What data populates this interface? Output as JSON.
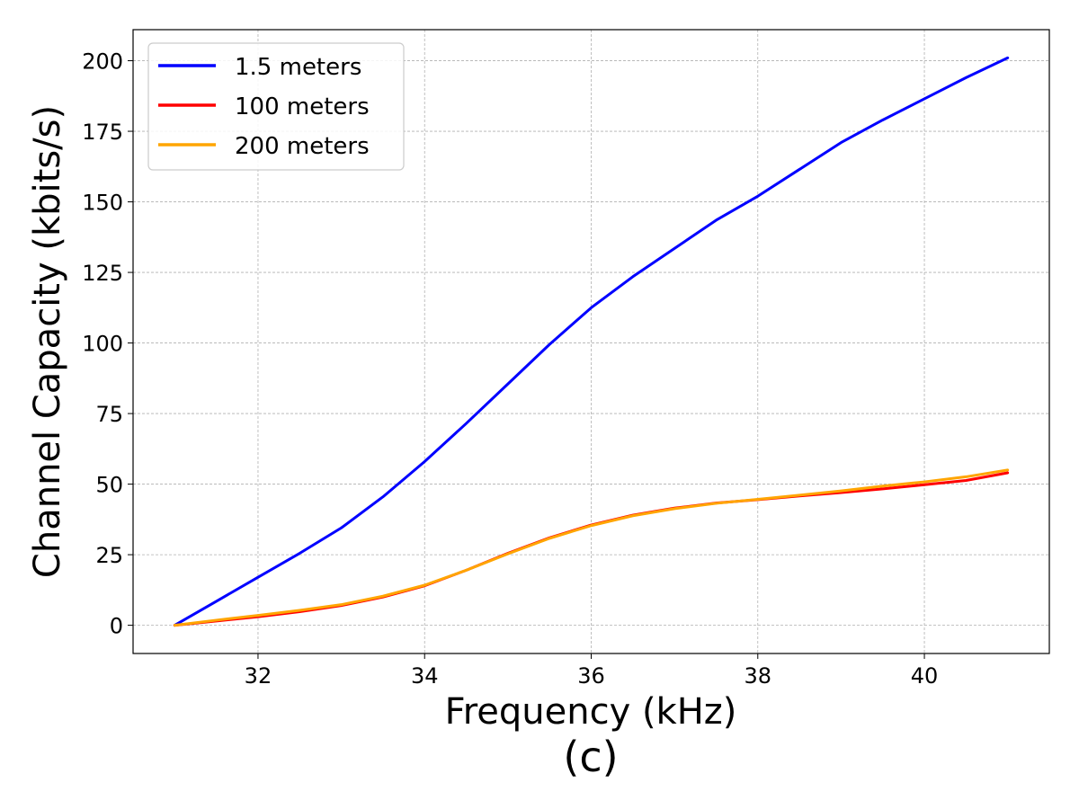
{
  "chart_data": {
    "type": "line",
    "title": "",
    "xlabel": "Frequency (kHz)",
    "ylabel": "Channel Capacity (kbits/s)",
    "caption": "(c)",
    "xlim": [
      30.5,
      41.5
    ],
    "ylim": [
      -10,
      211
    ],
    "xticks": [
      32,
      34,
      36,
      38,
      40
    ],
    "yticks": [
      0,
      25,
      50,
      75,
      100,
      125,
      150,
      175,
      200
    ],
    "grid": true,
    "legend_position": "top-left",
    "x": [
      31,
      31.5,
      32,
      32.5,
      33,
      33.5,
      34,
      34.5,
      35,
      35.5,
      36,
      36.5,
      37,
      37.5,
      38,
      38.5,
      39,
      39.5,
      40,
      40.5,
      41
    ],
    "series": [
      {
        "name": "1.5 meters",
        "color": "#0000ff",
        "values": [
          0,
          8.5,
          17,
          25.5,
          34.5,
          45.5,
          58,
          71.5,
          85.5,
          99.5,
          112.5,
          123.5,
          133.5,
          143.5,
          152,
          161.5,
          171,
          179,
          186.5,
          194,
          201
        ]
      },
      {
        "name": "100 meters",
        "color": "#ff0000",
        "values": [
          0,
          1.5,
          3,
          4.8,
          7,
          10,
          14,
          19.5,
          25.5,
          31,
          35.5,
          39,
          41.5,
          43.3,
          44.5,
          45.8,
          47,
          48.3,
          49.8,
          51.3,
          54
        ]
      },
      {
        "name": "200 meters",
        "color": "#ffa500",
        "values": [
          0,
          1.8,
          3.5,
          5.3,
          7.3,
          10.3,
          14.2,
          19.5,
          25.3,
          30.8,
          35.3,
          38.8,
          41.3,
          43.2,
          44.6,
          46.1,
          47.6,
          49.3,
          50.8,
          52.6,
          55
        ]
      }
    ]
  }
}
